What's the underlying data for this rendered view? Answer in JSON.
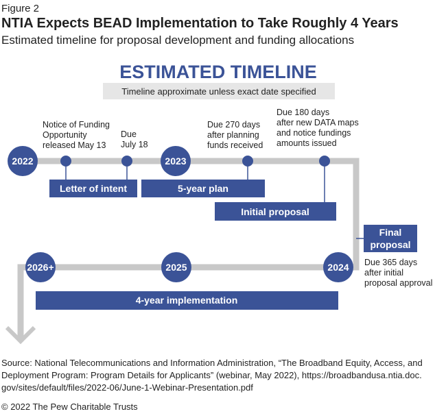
{
  "header": {
    "figure": "Figure 2",
    "title": "NTIA Expects BEAD Implementation to Take Roughly 4 Years",
    "subtitle": "Estimated timeline for proposal development and funding allocations"
  },
  "diagram": {
    "heading": "ESTIMATED TIMELINE",
    "note": "Timeline approximate unless exact date specified",
    "years": [
      "2022",
      "2023",
      "2024",
      "2025",
      "2026+"
    ],
    "annotations": [
      [
        "Notice of Funding",
        "Opportunity",
        "released May 13"
      ],
      [
        "Due",
        "July 18"
      ],
      [
        "Due 270 days",
        "after planning",
        "funds received"
      ],
      [
        "Due 180 days",
        "after new DATA maps",
        "and notice fundings",
        "amounts issued"
      ],
      [
        "Due 365 days",
        "after initial",
        "proposal approval"
      ]
    ],
    "bars": [
      [
        "Letter of intent"
      ],
      [
        "5-year plan"
      ],
      [
        "Initial proposal"
      ],
      [
        "Final",
        "proposal"
      ],
      [
        "4-year implementation"
      ]
    ]
  },
  "footer": {
    "source": [
      "Source: National Telecommunications and Information Administration, “The Broadband Equity, Access, and",
      "Deployment Program: Program Details for Applicants” (webinar, May 2022), https://broadbandusa.ntia.doc.",
      "gov/sites/default/files/2022-06/June-1-Webinar-Presentation.pdf"
    ],
    "copyright": "© 2022 The Pew Charitable Trusts"
  }
}
